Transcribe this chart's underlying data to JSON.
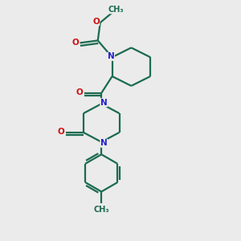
{
  "bg_color": "#ebebeb",
  "bond_color": "#1a6b50",
  "N_color": "#2222cc",
  "O_color": "#cc1111",
  "line_width": 1.6,
  "font_size": 7.5,
  "figsize": [
    3.0,
    3.0
  ],
  "dpi": 100,
  "xlim": [
    0,
    10
  ],
  "ylim": [
    0,
    10
  ]
}
